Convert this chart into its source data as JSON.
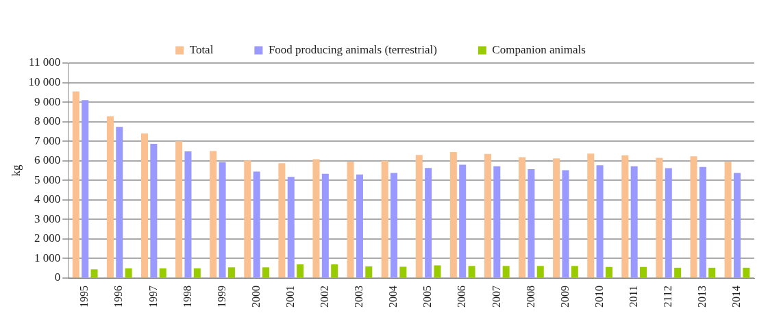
{
  "chart_data": {
    "type": "bar",
    "ylabel": "kg",
    "categories": [
      "1995",
      "1996",
      "1997",
      "1998",
      "1999",
      "2000",
      "2001",
      "2002",
      "2003",
      "2004",
      "2005",
      "2006",
      "2007",
      "2008",
      "2009",
      "2010",
      "2011",
      "2112",
      "2013",
      "2014"
    ],
    "series": [
      {
        "name": "Total",
        "color": "#fac090",
        "values": [
          9550,
          8280,
          7400,
          7000,
          6500,
          6020,
          5880,
          6080,
          5950,
          6000,
          6300,
          6450,
          6350,
          6180,
          6120,
          6370,
          6280,
          6150,
          6230,
          5950
        ]
      },
      {
        "name": "Food producing animals (terrestrial)",
        "color": "#9999ff",
        "values": [
          9100,
          7730,
          6870,
          6480,
          5930,
          5450,
          5180,
          5330,
          5300,
          5380,
          5630,
          5800,
          5720,
          5570,
          5520,
          5770,
          5720,
          5620,
          5680,
          5380
        ]
      },
      {
        "name": "Companion animals",
        "color": "#99cc00",
        "values": [
          450,
          500,
          500,
          500,
          550,
          550,
          700,
          700,
          600,
          580,
          650,
          620,
          620,
          620,
          620,
          570,
          570,
          530,
          530,
          530
        ]
      }
    ],
    "ylim": [
      0,
      11000
    ],
    "yticks": [
      0,
      {
        "value": 1000,
        "label": "1 000"
      },
      {
        "value": 2000,
        "label": "2 000"
      },
      {
        "value": 3000,
        "label": "3 000"
      },
      {
        "value": 4000,
        "label": "4 000"
      },
      {
        "value": 5000,
        "label": "5 000"
      },
      {
        "value": 6000,
        "label": "6 000"
      },
      {
        "value": 7000,
        "label": "7 000"
      },
      {
        "value": 8000,
        "label": "8 000"
      },
      {
        "value": 9000,
        "label": "9 000"
      },
      {
        "value": 10000,
        "label": "10 000"
      },
      {
        "value": 11000,
        "label": "11 000"
      }
    ],
    "grid": "y",
    "legend": "top"
  }
}
